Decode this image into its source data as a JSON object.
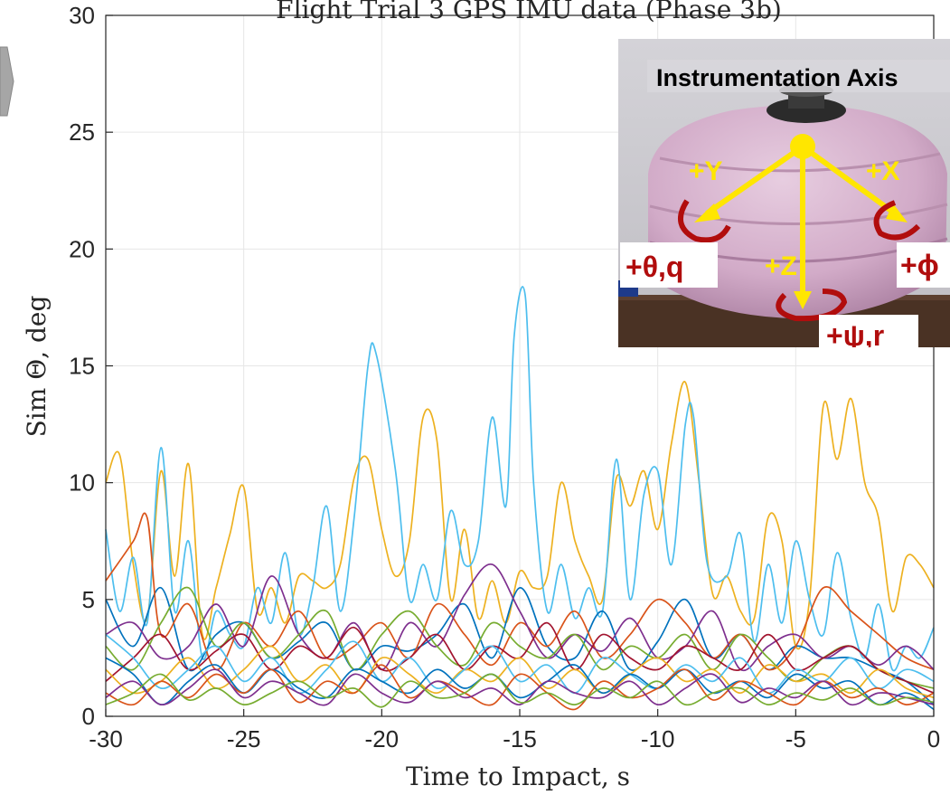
{
  "chart_data": {
    "type": "line",
    "title": "Flight Trial 3 GPS IMU data (Phase 3b)",
    "xlabel": "Time to Impact, s",
    "ylabel": "Sim Θ, deg",
    "xlim": [
      -30,
      0
    ],
    "ylim": [
      0,
      30
    ],
    "xticks": [
      "-30",
      "-25",
      "-20",
      "-15",
      "-10",
      "-5",
      "0"
    ],
    "yticks": [
      "0",
      "5",
      "10",
      "15",
      "20",
      "25",
      "30"
    ],
    "grid": true,
    "series": [
      {
        "color": "#edb120",
        "x": [
          -30,
          -29.5,
          -29,
          -28.5,
          -28,
          -27.5,
          -27,
          -26.5,
          -26,
          -25.5,
          -25,
          -24.5,
          -24,
          -23.5,
          -23,
          -22.5,
          -22,
          -21.5,
          -21,
          -20.5,
          -20,
          -19.5,
          -19,
          -18.5,
          -18,
          -17.5,
          -17,
          -16.5,
          -16,
          -15.5,
          -15,
          -14.5,
          -14,
          -13.5,
          -13,
          -12.5,
          -12,
          -11.5,
          -11,
          -10.5,
          -10,
          -9.5,
          -9,
          -8.5,
          -8,
          -7.5,
          -7,
          -6.5,
          -6,
          -5.5,
          -5,
          -4.5,
          -4,
          -3.5,
          -3,
          -2.5,
          -2,
          -1.5,
          -1,
          -0.5,
          0
        ],
        "y": [
          10,
          11.2,
          6.5,
          4.2,
          10.5,
          6,
          10.8,
          3.5,
          5.5,
          7.8,
          9.8,
          4.5,
          5.5,
          4,
          6,
          5.8,
          5.5,
          6.5,
          10.2,
          11,
          8,
          6,
          7.5,
          12.8,
          11.8,
          5,
          8,
          4.2,
          5.8,
          4,
          6.2,
          5.5,
          6,
          10,
          7.5,
          6,
          5,
          10.2,
          9,
          10.5,
          8,
          11.7,
          14.3,
          10,
          5.2,
          6,
          4.5,
          4.2,
          8.5,
          7.5,
          3,
          5,
          13.3,
          11,
          13.6,
          10,
          8.5,
          4.5,
          6.8,
          6.5,
          5.5
        ]
      },
      {
        "color": "#4dbeee",
        "x": [
          -30,
          -29.5,
          -29,
          -28.5,
          -28,
          -27.5,
          -27,
          -26.5,
          -26,
          -25.5,
          -25,
          -24.5,
          -24,
          -23.5,
          -23,
          -22.5,
          -22,
          -21.5,
          -21,
          -20.5,
          -20.2,
          -19.5,
          -19,
          -18.5,
          -18,
          -17.5,
          -17,
          -16.5,
          -16,
          -15.5,
          -15.2,
          -14.8,
          -14.5,
          -14,
          -13.5,
          -13,
          -12.5,
          -12,
          -11.5,
          -11,
          -10.5,
          -10,
          -9.5,
          -9,
          -8.7,
          -8.2,
          -7.5,
          -7,
          -6.5,
          -6,
          -5.5,
          -5,
          -4.5,
          -4,
          -3.5,
          -3,
          -2.5,
          -2,
          -1.5,
          -1,
          -0.5,
          0
        ],
        "y": [
          8,
          4.5,
          6.8,
          4,
          11.5,
          4.5,
          7.5,
          2.5,
          4.5,
          3.5,
          3,
          5.5,
          4,
          7,
          3.5,
          5.5,
          9,
          4.5,
          8.5,
          15,
          15.5,
          10.5,
          5,
          6.5,
          5,
          8.8,
          6.5,
          7.5,
          12.8,
          9,
          16.3,
          18,
          10,
          4.5,
          6.5,
          4.2,
          5.5,
          4.5,
          11,
          5,
          9.5,
          10.5,
          6.5,
          12.5,
          12.8,
          6.5,
          6,
          7.8,
          3.2,
          6.5,
          4,
          7.5,
          5,
          3.5,
          7,
          4.2,
          2.5,
          4.8,
          2,
          3,
          2.5,
          3.8
        ]
      },
      {
        "color": "#0072bd",
        "x": [
          -30,
          -29,
          -28,
          -27,
          -26,
          -25,
          -24,
          -23,
          -22,
          -21,
          -20,
          -19,
          -18,
          -17,
          -16,
          -15,
          -14,
          -13,
          -12,
          -11,
          -10,
          -9,
          -8,
          -7,
          -6,
          -5,
          -4,
          -3,
          -2,
          -1,
          0
        ],
        "y": [
          5,
          3,
          5.5,
          2,
          3.5,
          4,
          2.5,
          3.2,
          4,
          2,
          3,
          2.8,
          3.5,
          4.8,
          2.5,
          5.5,
          3,
          2.5,
          4.5,
          2,
          3.2,
          5,
          2.5,
          3.5,
          2,
          3,
          2.5,
          2.5,
          2,
          1.5,
          0.5
        ]
      },
      {
        "color": "#d95319",
        "x": [
          -30,
          -29,
          -28.5,
          -28,
          -27,
          -26,
          -25,
          -24,
          -23,
          -22,
          -21,
          -20,
          -19,
          -18,
          -17,
          -16,
          -15,
          -14,
          -13,
          -12,
          -11,
          -10,
          -9,
          -8,
          -7,
          -6,
          -5,
          -4,
          -3,
          -2,
          -1,
          0
        ],
        "y": [
          5.8,
          7.5,
          8.5,
          3.5,
          4.8,
          2,
          4,
          3,
          4.5,
          2.5,
          3,
          4,
          2.5,
          4.8,
          3.5,
          2.2,
          4,
          3,
          4.5,
          2.5,
          3.5,
          5,
          4,
          2.5,
          3.5,
          2,
          3,
          5.5,
          4.5,
          3.5,
          2.5,
          2
        ]
      },
      {
        "color": "#7e2f8e",
        "x": [
          -30,
          -29,
          -28,
          -27,
          -26,
          -25,
          -24,
          -23,
          -22,
          -21,
          -20,
          -19,
          -18,
          -17,
          -16,
          -15,
          -14,
          -13,
          -12,
          -11,
          -10,
          -9,
          -8,
          -7,
          -6,
          -5,
          -4,
          -3,
          -2,
          -1,
          0
        ],
        "y": [
          3.5,
          4,
          2.5,
          3,
          4.8,
          3,
          6,
          3.5,
          2.5,
          4,
          2,
          4,
          3,
          5.2,
          6.5,
          4.5,
          2.5,
          3.5,
          2.8,
          4.2,
          2.5,
          3,
          4.5,
          2,
          3,
          3.5,
          2.5,
          3,
          2.2,
          3,
          2
        ]
      },
      {
        "color": "#77ac30",
        "x": [
          -30,
          -29,
          -28,
          -27,
          -26,
          -25,
          -24,
          -23,
          -22,
          -21,
          -20,
          -19,
          -18,
          -17,
          -16,
          -15,
          -14,
          -13,
          -12,
          -11,
          -10,
          -9,
          -8,
          -7,
          -6,
          -5,
          -4,
          -3,
          -2,
          -1,
          0
        ],
        "y": [
          3,
          2,
          4,
          5.5,
          3,
          4,
          2.5,
          3.5,
          4.5,
          2,
          3.5,
          4.5,
          3,
          2.2,
          4,
          3,
          2.5,
          3.5,
          2,
          3,
          2.5,
          3.5,
          2,
          3.5,
          2.5,
          1.5,
          2.5,
          3,
          2,
          1.5,
          1.2
        ]
      },
      {
        "color": "#a2142f",
        "x": [
          -30,
          -29,
          -28,
          -27,
          -26,
          -25,
          -24,
          -23,
          -22,
          -21,
          -20,
          -19,
          -18,
          -17,
          -16,
          -15,
          -14,
          -13,
          -12,
          -11,
          -10,
          -9,
          -8,
          -7,
          -6,
          -5,
          -4,
          -3,
          -2,
          -1,
          0
        ],
        "y": [
          1.5,
          2.5,
          3.5,
          2,
          2.8,
          3.5,
          2,
          3,
          2.5,
          3.8,
          2,
          2.5,
          3.5,
          2,
          3,
          2.5,
          4,
          2,
          3.5,
          2.5,
          2,
          3,
          2.5,
          2,
          3.5,
          2,
          2.5,
          3,
          2,
          1.5,
          1
        ]
      },
      {
        "color": "#edb120",
        "x": [
          -30,
          -29,
          -28,
          -27,
          -26,
          -25,
          -24,
          -23,
          -22,
          -21,
          -20,
          -19,
          -18,
          -17,
          -16,
          -15,
          -14,
          -13,
          -12,
          -11,
          -10,
          -9,
          -8,
          -7,
          -6,
          -5,
          -4,
          -3,
          -2,
          -1,
          0
        ],
        "y": [
          2,
          1,
          1.5,
          2.5,
          1.2,
          2,
          3,
          1.5,
          2.2,
          1,
          2.5,
          1.8,
          1,
          2,
          1.5,
          2.5,
          1.2,
          2,
          1,
          1.8,
          2.5,
          1.5,
          2,
          1,
          2.2,
          1.5,
          1.8,
          1,
          2,
          1.2,
          0.8
        ]
      },
      {
        "color": "#4dbeee",
        "x": [
          -30,
          -29,
          -28,
          -27,
          -26,
          -25,
          -24,
          -23,
          -22,
          -21,
          -20,
          -19,
          -18,
          -17,
          -16,
          -15,
          -14,
          -13,
          -12,
          -11,
          -10,
          -9,
          -8,
          -7,
          -6,
          -5,
          -4,
          -3,
          -2,
          -1,
          0
        ],
        "y": [
          3.5,
          2.5,
          1.2,
          2,
          3,
          1.5,
          2.5,
          1,
          2,
          3.2,
          1.5,
          2.5,
          1.2,
          2,
          3,
          1.5,
          2.2,
          1,
          2.5,
          1.8,
          1.2,
          2.2,
          1.5,
          2.5,
          1,
          2,
          1.5,
          2.5,
          1.2,
          2,
          1.5
        ]
      },
      {
        "color": "#0072bd",
        "x": [
          -30,
          -29,
          -28,
          -27,
          -26,
          -25,
          -24,
          -23,
          -22,
          -21,
          -20,
          -19,
          -18,
          -17,
          -16,
          -15,
          -14,
          -13,
          -12,
          -11,
          -10,
          -9,
          -8,
          -7,
          -6,
          -5,
          -4,
          -3,
          -2,
          -1,
          0
        ],
        "y": [
          2.5,
          1.8,
          0.5,
          1.5,
          2.2,
          1,
          2,
          1.2,
          0.8,
          2,
          1.5,
          1,
          2,
          1.2,
          1.8,
          0.8,
          1.5,
          2.2,
          1,
          1.8,
          1.2,
          2,
          1,
          1.5,
          0.8,
          1.8,
          1.2,
          1.5,
          0.5,
          1,
          0.3
        ]
      },
      {
        "color": "#d95319",
        "x": [
          -30,
          -29,
          -28,
          -27,
          -26,
          -25,
          -24,
          -23,
          -22,
          -21,
          -20,
          -19,
          -18,
          -17,
          -16,
          -15,
          -14,
          -13,
          -12,
          -11,
          -10,
          -9,
          -8,
          -7,
          -6,
          -5,
          -4,
          -3,
          -2,
          -1,
          0
        ],
        "y": [
          1,
          0.5,
          1.5,
          0.8,
          1.8,
          1,
          2,
          0.6,
          1.5,
          1,
          2.2,
          0.8,
          1.5,
          1,
          0.5,
          1.8,
          1,
          0.3,
          1.5,
          0.8,
          1.2,
          2,
          0.7,
          1.5,
          1,
          0.5,
          1.5,
          0.8,
          1.2,
          0.5,
          1
        ]
      },
      {
        "color": "#7e2f8e",
        "x": [
          -30,
          -29,
          -28,
          -27,
          -26,
          -25,
          -24,
          -23,
          -22,
          -21,
          -20,
          -19,
          -18,
          -17,
          -16,
          -15,
          -14,
          -13,
          -12,
          -11,
          -10,
          -9,
          -8,
          -7,
          -6,
          -5,
          -4,
          -3,
          -2,
          -1,
          0
        ],
        "y": [
          0.8,
          1.5,
          0.5,
          1.2,
          2,
          0.8,
          1.5,
          1,
          0.5,
          1.8,
          1,
          0.6,
          1.5,
          0.8,
          1.2,
          0.5,
          1.5,
          1,
          0.8,
          1.5,
          0.5,
          1.2,
          1.8,
          0.6,
          1.2,
          0.8,
          1.5,
          0.5,
          1,
          0.8,
          0.5
        ]
      },
      {
        "color": "#77ac30",
        "x": [
          -30,
          -29,
          -28,
          -27,
          -26,
          -25,
          -24,
          -23,
          -22,
          -21,
          -20,
          -19,
          -18,
          -17,
          -16,
          -15,
          -14,
          -13,
          -12,
          -11,
          -10,
          -9,
          -8,
          -7,
          -6,
          -5,
          -4,
          -3,
          -2,
          -1,
          0
        ],
        "y": [
          0.5,
          1,
          1.8,
          0.7,
          1.2,
          0.5,
          1,
          1.5,
          0.8,
          1.2,
          0.4,
          1.5,
          0.8,
          1,
          1.8,
          0.6,
          1,
          0.5,
          1.2,
          0.8,
          1.5,
          0.5,
          1,
          1.2,
          0.5,
          1,
          0.7,
          1.2,
          0.5,
          0.8,
          0.6
        ]
      }
    ]
  },
  "inset": {
    "title": "Instrumentation Axis",
    "axis_labels": [
      "+Y",
      "+X",
      "+Z"
    ],
    "rotation_labels": [
      "+θ,q",
      "+ϕ",
      "+ψ,r"
    ]
  }
}
